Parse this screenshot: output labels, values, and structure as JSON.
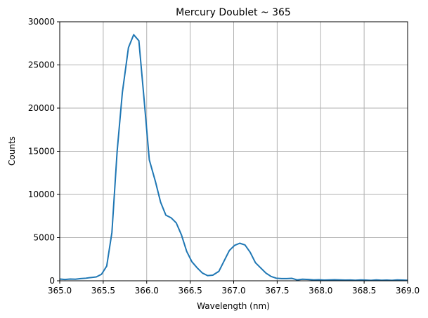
{
  "chart_data": {
    "type": "line",
    "title": "Mercury Doublet ~ 365",
    "xlabel": "Wavelength (nm)",
    "ylabel": "Counts",
    "xlim": [
      365.0,
      369.0
    ],
    "ylim": [
      0,
      30000
    ],
    "grid": true,
    "x_ticks": [
      365.0,
      365.5,
      366.0,
      366.5,
      367.0,
      367.5,
      368.0,
      368.5,
      369.0
    ],
    "x_tick_labels": [
      "365.0",
      "365.5",
      "366.0",
      "366.5",
      "367.0",
      "367.5",
      "368.0",
      "368.5",
      "369.0"
    ],
    "y_ticks": [
      0,
      5000,
      10000,
      15000,
      20000,
      25000,
      30000
    ],
    "y_tick_labels": [
      "0",
      "5000",
      "10000",
      "15000",
      "20000",
      "25000",
      "30000"
    ],
    "series": [
      {
        "color": "#1f77b4",
        "x": [
          365.0,
          365.06,
          365.12,
          365.18,
          365.24,
          365.3,
          365.36,
          365.42,
          365.48,
          365.54,
          365.6,
          365.66,
          365.72,
          365.79,
          365.85,
          365.91,
          365.97,
          366.03,
          366.1,
          366.16,
          366.22,
          366.28,
          366.34,
          366.4,
          366.46,
          366.52,
          366.58,
          366.64,
          366.7,
          366.76,
          366.83,
          366.89,
          366.95,
          367.01,
          367.07,
          367.13,
          367.19,
          367.25,
          367.31,
          367.37,
          367.43,
          367.49,
          367.55,
          367.61,
          367.67,
          367.73,
          367.79,
          367.86,
          367.92,
          367.98,
          368.04,
          368.1,
          368.16,
          368.22,
          368.28,
          368.34,
          368.4,
          368.46,
          368.52,
          368.58,
          368.64,
          368.7,
          368.76,
          368.82,
          368.88,
          368.94,
          369.0
        ],
        "y": [
          200,
          150,
          200,
          180,
          250,
          300,
          380,
          450,
          750,
          1700,
          5600,
          15000,
          21800,
          27000,
          28500,
          27800,
          21000,
          14000,
          11500,
          9100,
          7600,
          7300,
          6700,
          5300,
          3400,
          2200,
          1500,
          900,
          600,
          650,
          1100,
          2300,
          3500,
          4100,
          4350,
          4150,
          3300,
          2100,
          1500,
          900,
          500,
          300,
          250,
          250,
          280,
          100,
          180,
          150,
          100,
          120,
          80,
          100,
          120,
          100,
          80,
          90,
          60,
          100,
          80,
          50,
          100,
          60,
          80,
          50,
          100,
          80,
          60
        ]
      }
    ]
  }
}
